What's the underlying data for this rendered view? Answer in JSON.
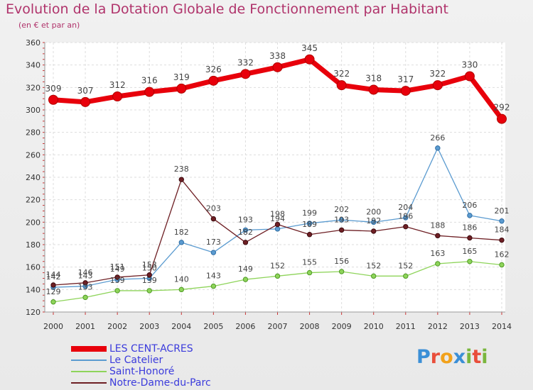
{
  "title": "Evolution de la Dotation Globale de Fonctionnement par Habitant",
  "subtitle": "(en € et par an)",
  "logo": {
    "letters": [
      "P",
      "r",
      "o",
      "x",
      "i",
      "t",
      "i"
    ],
    "colors": [
      "#3b8fd6",
      "#e94e3b",
      "#f2a21b",
      "#3b8fd6",
      "#7ab63d",
      "#e94e3b",
      "#7ab63d"
    ]
  },
  "chart_data": {
    "type": "line",
    "title": "Evolution de la Dotation Globale de Fonctionnement par Habitant",
    "subtitle": "(en € et par an)",
    "xlabel": "",
    "ylabel": "",
    "x": [
      2000,
      2001,
      2002,
      2003,
      2004,
      2005,
      2006,
      2007,
      2008,
      2009,
      2010,
      2011,
      2012,
      2013,
      2014
    ],
    "ylim": [
      120,
      360
    ],
    "yticks": [
      120,
      140,
      160,
      180,
      200,
      220,
      240,
      260,
      280,
      300,
      320,
      340,
      360
    ],
    "grid": true,
    "legend": "bottom-left",
    "series": [
      {
        "name": "LES CENT-ACRES",
        "color": "#e8000b",
        "values": [
          309,
          307,
          312,
          316,
          319,
          326,
          332,
          338,
          345,
          322,
          318,
          317,
          322,
          330,
          292
        ]
      },
      {
        "name": "Le Catelier",
        "color": "#5b9bd0",
        "values": [
          142,
          143,
          149,
          150,
          182,
          173,
          193,
          194,
          199,
          202,
          200,
          204,
          266,
          206,
          201
        ]
      },
      {
        "name": "Saint-Honoré",
        "color": "#8ed45a",
        "values": [
          129,
          133,
          139,
          139,
          140,
          143,
          149,
          152,
          155,
          156,
          152,
          152,
          163,
          165,
          162
        ]
      },
      {
        "name": "Notre-Dame-du-Parc",
        "color": "#6e1f24",
        "values": [
          144,
          146,
          151,
          153,
          238,
          203,
          182,
          198,
          189,
          193,
          192,
          196,
          188,
          186,
          184
        ]
      }
    ]
  }
}
